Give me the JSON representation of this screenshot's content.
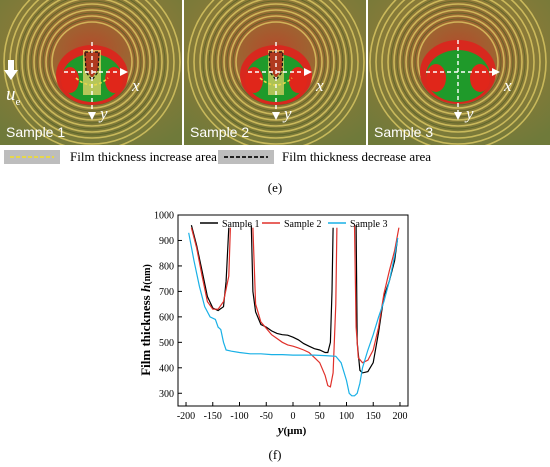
{
  "panels": [
    {
      "label": "Sample 1",
      "x_label": "x",
      "y_label": "y",
      "flow_symbol": "u",
      "flow_subscript": "e"
    },
    {
      "label": "Sample 2",
      "x_label": "x",
      "y_label": "y"
    },
    {
      "label": "Sample 3",
      "x_label": "x",
      "y_label": "y"
    }
  ],
  "legend": {
    "increase": "Film thickness increase area",
    "decrease": "Film thickness decrease area",
    "increase_color": "#e6d74a",
    "decrease_color": "#222222"
  },
  "captions": {
    "e": "(e)",
    "f": "(f)"
  },
  "chart_data": {
    "type": "line",
    "xlabel_sym": "y",
    "xlabel_unit": "(μm)",
    "ylabel_text": "Film thickness ",
    "ylabel_sym": "h",
    "ylabel_unit": "(nm)",
    "xlim": [
      -215,
      215
    ],
    "ylim": [
      250,
      1000
    ],
    "xticks": [
      -200,
      -150,
      -100,
      -50,
      0,
      50,
      100,
      150,
      200
    ],
    "yticks": [
      300,
      400,
      500,
      600,
      700,
      800,
      900,
      1000
    ],
    "legend_position": "top",
    "series": [
      {
        "name": "Sample 1",
        "color": "#000000",
        "x": [
          -190,
          -180,
          -170,
          -160,
          -150,
          -140,
          -130,
          -125,
          -120,
          -120,
          -115,
          -110,
          -100,
          -90,
          -80,
          -78,
          -75,
          -70,
          -60,
          -50,
          -40,
          -30,
          -20,
          -10,
          0,
          10,
          20,
          30,
          40,
          50,
          60,
          65,
          70,
          73,
          75,
          75,
          78
        ],
        "y": [
          960,
          880,
          780,
          680,
          635,
          625,
          640,
          740,
          950,
          null,
          null,
          null,
          null,
          null,
          null,
          960,
          700,
          620,
          570,
          560,
          545,
          535,
          530,
          528,
          520,
          510,
          495,
          485,
          475,
          470,
          460,
          460,
          500,
          700,
          950,
          null,
          null
        ]
      },
      {
        "name": "Sample 1 right",
        "color": "#000000",
        "legend": false,
        "x": [
          118,
          120,
          125,
          130,
          140,
          150,
          160,
          170,
          180,
          190,
          195
        ],
        "y": [
          960,
          500,
          390,
          380,
          385,
          420,
          540,
          680,
          740,
          820,
          900
        ]
      },
      {
        "name": "Sample 2",
        "color": "#e0302a",
        "x": [
          -190,
          -180,
          -170,
          -160,
          -150,
          -140,
          -130,
          -120,
          -117,
          -115,
          -110,
          -100,
          -90,
          -80,
          -75,
          -70,
          -60,
          -50,
          -40,
          -30,
          -20,
          -10,
          0,
          10,
          20,
          30,
          40,
          50,
          60,
          65,
          70,
          75,
          80,
          82
        ],
        "y": [
          950,
          870,
          760,
          660,
          630,
          630,
          660,
          760,
          950,
          null,
          null,
          null,
          null,
          null,
          950,
          650,
          580,
          555,
          530,
          515,
          500,
          490,
          485,
          478,
          470,
          460,
          440,
          420,
          370,
          330,
          325,
          380,
          650,
          950
        ]
      },
      {
        "name": "Sample 2 right",
        "color": "#e0302a",
        "legend": false,
        "x": [
          115,
          118,
          122,
          130,
          140,
          150,
          160,
          170,
          180,
          190,
          198
        ],
        "y": [
          960,
          560,
          440,
          420,
          430,
          470,
          560,
          690,
          780,
          860,
          950
        ]
      },
      {
        "name": "Sample 3",
        "color": "#19b0e6",
        "x": [
          -195,
          -185,
          -175,
          -165,
          -155,
          -145,
          -140,
          -135,
          -130,
          -125,
          -115,
          -100,
          -80,
          -60,
          -40,
          -20,
          0,
          20,
          40,
          60,
          80,
          90,
          100,
          105,
          110,
          115,
          120,
          125,
          130,
          140,
          150,
          160,
          170,
          180,
          190,
          196
        ],
        "y": [
          930,
          820,
          720,
          640,
          600,
          590,
          560,
          550,
          500,
          470,
          465,
          460,
          455,
          455,
          452,
          452,
          450,
          450,
          450,
          448,
          445,
          420,
          350,
          300,
          290,
          290,
          300,
          340,
          400,
          470,
          530,
          600,
          660,
          740,
          840,
          910
        ]
      }
    ]
  }
}
